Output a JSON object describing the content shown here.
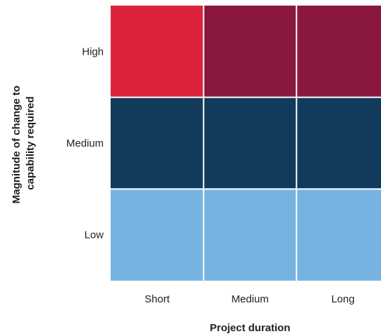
{
  "chart_data": {
    "type": "heatmap",
    "x_categories": [
      "Short",
      "Medium",
      "Long"
    ],
    "y_categories": [
      "High",
      "Medium",
      "Low"
    ],
    "xlabel": "Project duration",
    "ylabel_lines": [
      "Magnitude of change to",
      "capability required"
    ],
    "cells": [
      [
        {
          "color": "#DC233B"
        },
        {
          "color": "#8A1740"
        },
        {
          "color": "#8A1740"
        }
      ],
      [
        {
          "color": "#123A5B"
        },
        {
          "color": "#123A5B"
        },
        {
          "color": "#123A5B"
        }
      ],
      [
        {
          "color": "#77B3E1"
        },
        {
          "color": "#77B3E1"
        },
        {
          "color": "#77B3E1"
        }
      ]
    ],
    "grid": true,
    "legend": "none"
  }
}
